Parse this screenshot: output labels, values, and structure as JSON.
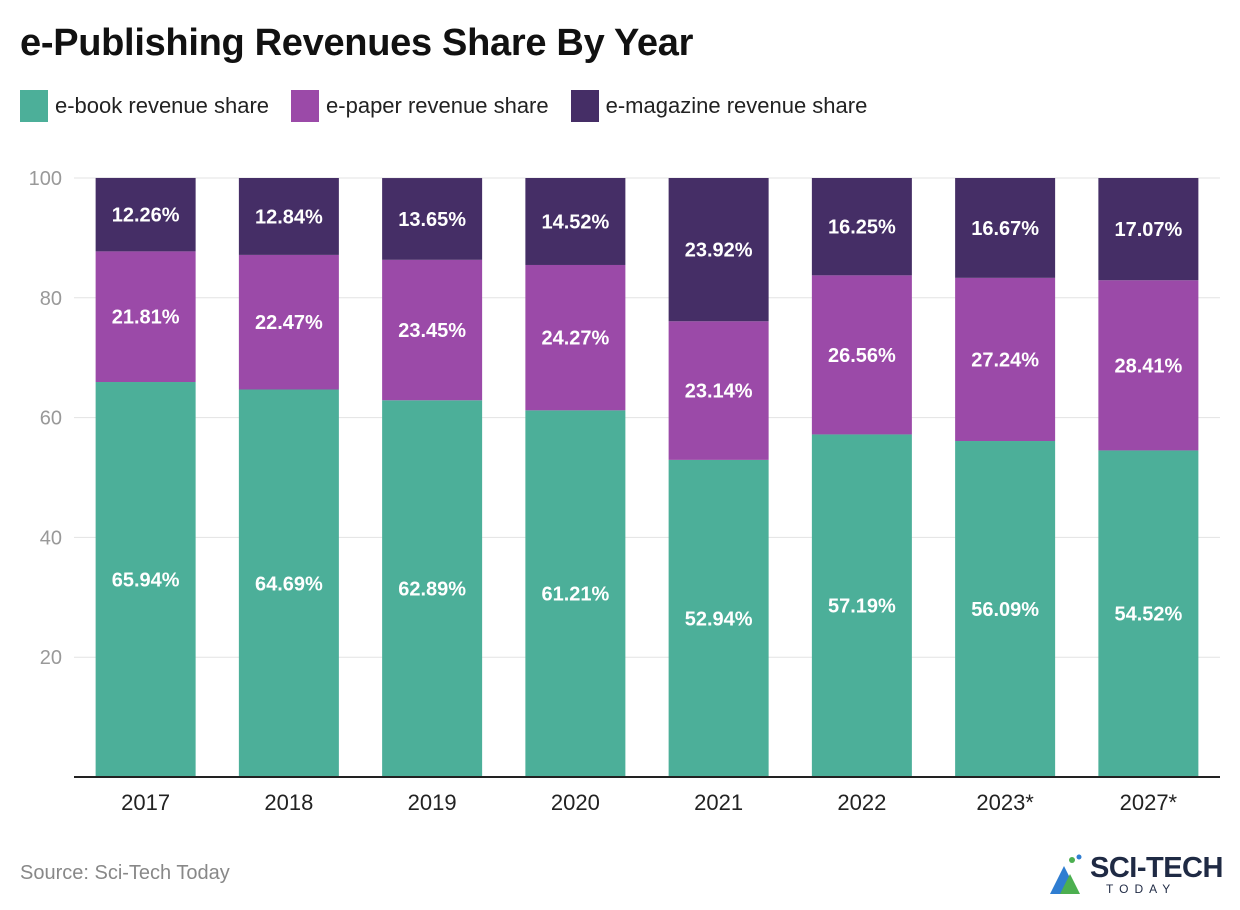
{
  "title": "e-Publishing Revenues Share By Year",
  "source": "Source: Sci-Tech Today",
  "logo": {
    "main": "SCI-TECH",
    "sub": "TODAY"
  },
  "colors": {
    "ebook": "#4caf99",
    "epaper": "#9b4aa8",
    "emagazine": "#452e66",
    "grid": "#e3e3e3",
    "axis": "#222222"
  },
  "legend": [
    {
      "label": "e-book revenue share",
      "color": "#4caf99"
    },
    {
      "label": "e-paper revenue share",
      "color": "#9b4aa8"
    },
    {
      "label": "e-magazine revenue share",
      "color": "#452e66"
    }
  ],
  "chart_data": {
    "type": "bar",
    "stacked": true,
    "title": "e-Publishing Revenues Share By Year",
    "categories": [
      "2017",
      "2018",
      "2019",
      "2020",
      "2021",
      "2022",
      "2023*",
      "2027*"
    ],
    "series": [
      {
        "name": "e-book revenue share",
        "color": "#4caf99",
        "values": [
          65.94,
          64.69,
          62.89,
          61.21,
          52.94,
          57.19,
          56.09,
          54.52
        ],
        "labels": [
          "65.94%",
          "64.69%",
          "62.89%",
          "61.21%",
          "52.94%",
          "57.19%",
          "56.09%",
          "54.52%"
        ]
      },
      {
        "name": "e-paper revenue share",
        "color": "#9b4aa8",
        "values": [
          21.81,
          22.47,
          23.45,
          24.27,
          23.14,
          26.56,
          27.24,
          28.41
        ],
        "labels": [
          "21.81%",
          "22.47%",
          "23.45%",
          "24.27%",
          "23.14%",
          "26.56%",
          "27.24%",
          "28.41%"
        ]
      },
      {
        "name": "e-magazine revenue share",
        "color": "#452e66",
        "values": [
          12.26,
          12.84,
          13.65,
          14.52,
          23.92,
          16.25,
          16.67,
          17.07
        ],
        "labels": [
          "12.26%",
          "12.84%",
          "13.65%",
          "14.52%",
          "23.92%",
          "16.25%",
          "16.67%",
          "17.07%"
        ]
      }
    ],
    "yticks": [
      "20",
      "40",
      "60",
      "80",
      "100"
    ],
    "ytick_values": [
      20,
      40,
      60,
      80,
      100
    ],
    "ylim": [
      0,
      100
    ],
    "xlabel": "",
    "ylabel": "",
    "grid": true,
    "legend_position": "top-left"
  }
}
